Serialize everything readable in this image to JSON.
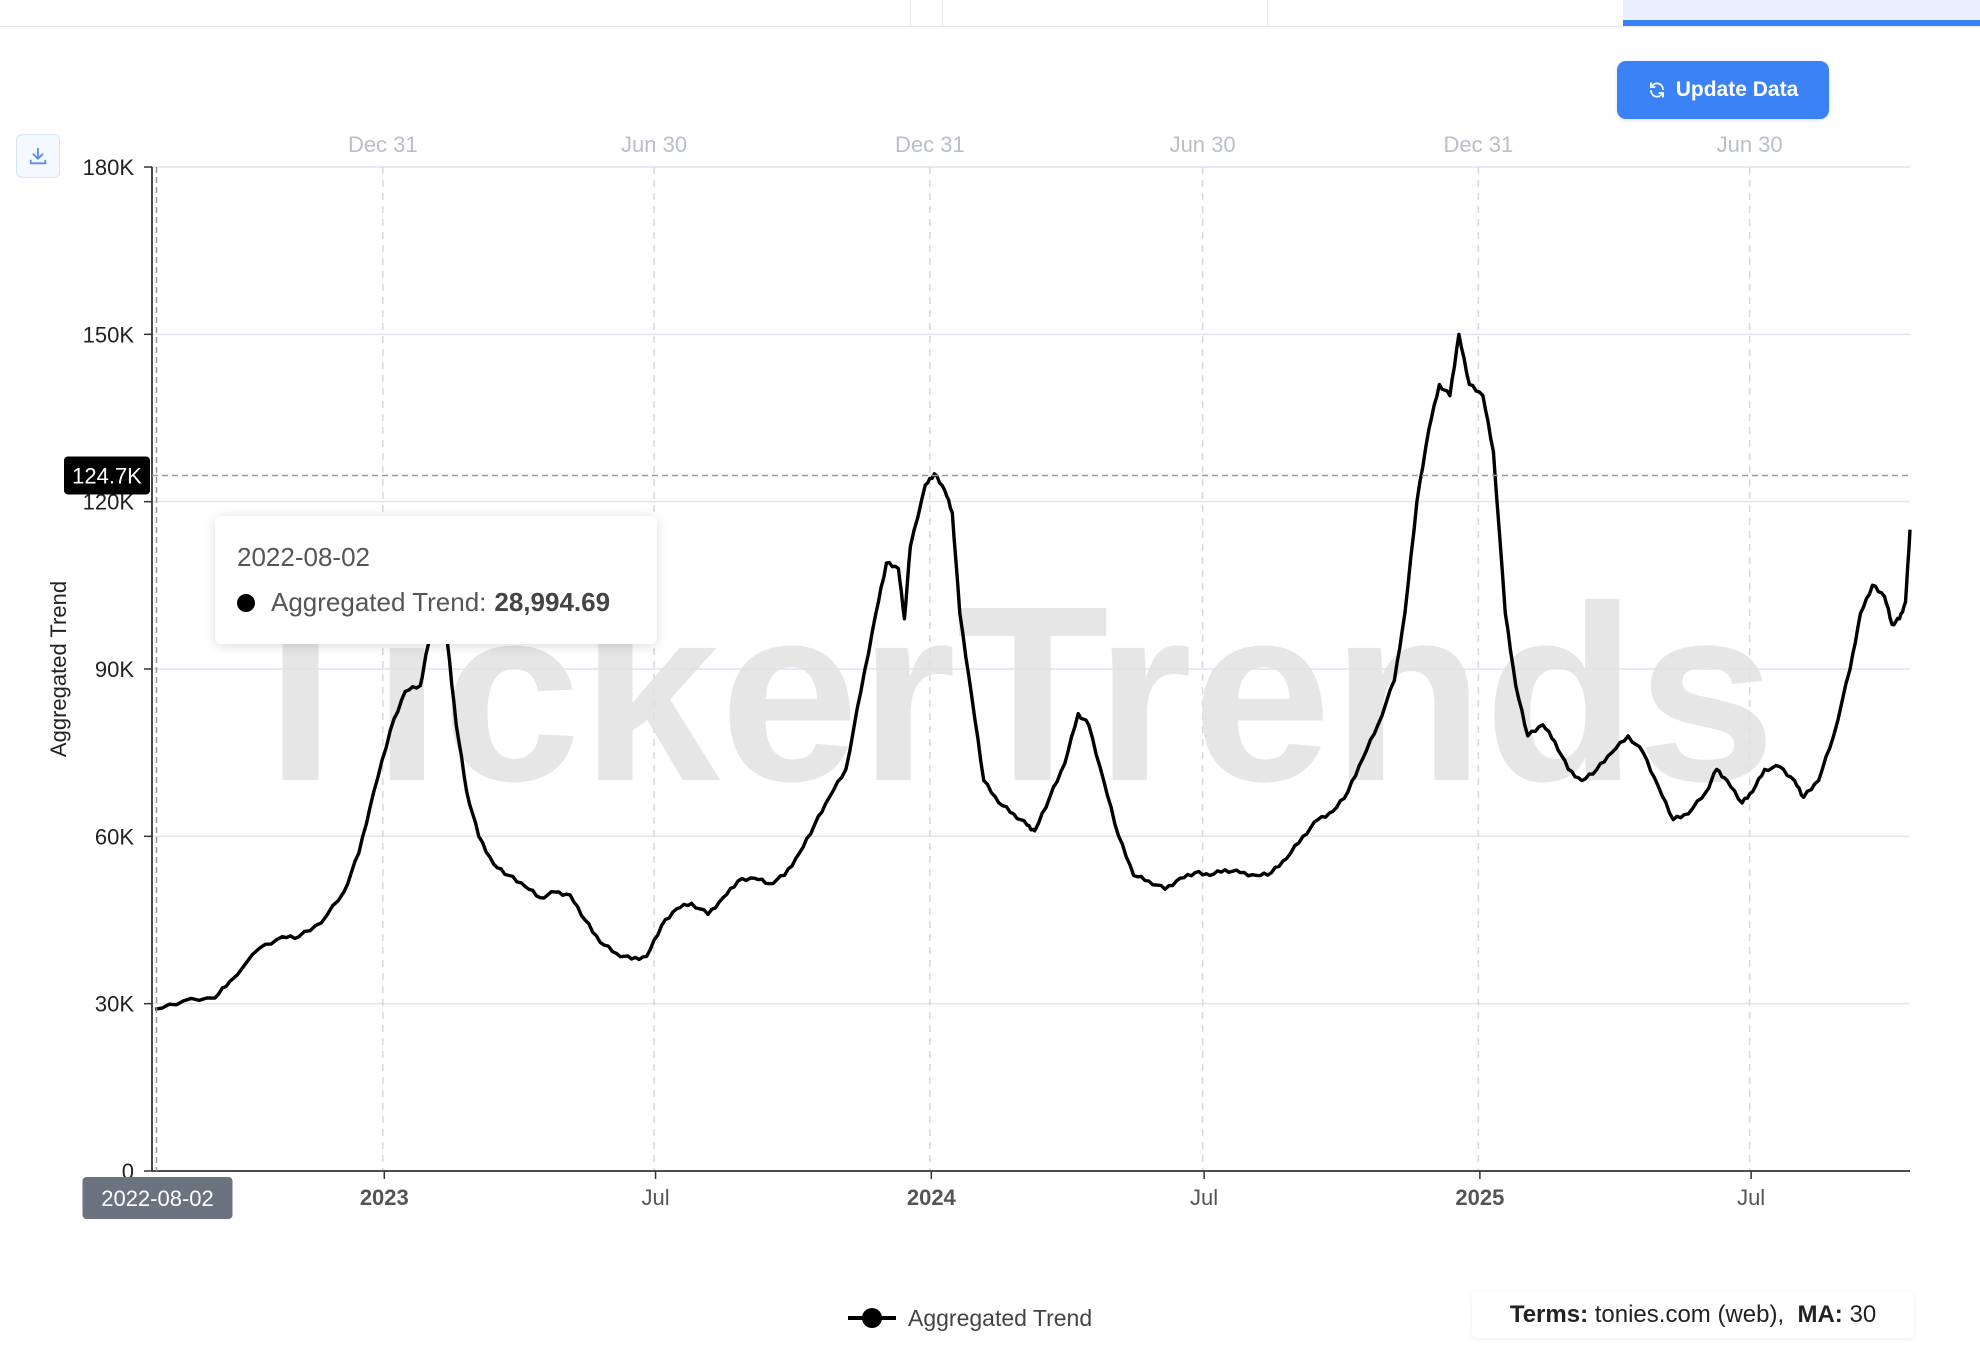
{
  "header": {
    "update_label": "Update Data",
    "update_icon": "refresh-icon",
    "download_icon": "download-icon"
  },
  "tooltip": {
    "date": "2022-08-02",
    "series_label": "Aggregated Trend:",
    "value": "28,994.69"
  },
  "crosshair": {
    "y_label": "124.7K",
    "x_label": "2022-08-02"
  },
  "watermark": "TickerTrends",
  "legend": {
    "label": "Aggregated Trend"
  },
  "terms": {
    "terms_label": "Terms:",
    "terms_value": "tonies.com (web),",
    "ma_label": "MA:",
    "ma_value": "30"
  },
  "colors": {
    "line": "#000000",
    "accent": "#3b82f6",
    "grid": "#dfe4ee",
    "watermark": "#e2e2e2"
  },
  "chart_data": {
    "type": "line",
    "ylabel": "Aggregated Trend",
    "ylim": [
      0,
      180000
    ],
    "y_ticks": [
      {
        "value": 0,
        "label": "0"
      },
      {
        "value": 30000,
        "label": "30K"
      },
      {
        "value": 60000,
        "label": "60K"
      },
      {
        "value": 90000,
        "label": "90K"
      },
      {
        "value": 120000,
        "label": "120K"
      },
      {
        "value": 150000,
        "label": "150K"
      },
      {
        "value": 180000,
        "label": "180K"
      }
    ],
    "xlim": [
      "2022-07-30",
      "2025-10-15"
    ],
    "x_ticks_bottom": [
      {
        "date": "2023-01-01",
        "label": "2023",
        "bold": true
      },
      {
        "date": "2023-07-01",
        "label": "Jul",
        "bold": false
      },
      {
        "date": "2024-01-01",
        "label": "2024",
        "bold": true
      },
      {
        "date": "2024-07-01",
        "label": "Jul",
        "bold": false
      },
      {
        "date": "2025-01-01",
        "label": "2025",
        "bold": true
      },
      {
        "date": "2025-07-01",
        "label": "Jul",
        "bold": false
      }
    ],
    "x_ticks_top": [
      {
        "date": "2022-12-31",
        "label": "Dec 31"
      },
      {
        "date": "2023-06-30",
        "label": "Jun 30"
      },
      {
        "date": "2023-12-31",
        "label": "Dec 31"
      },
      {
        "date": "2024-06-30",
        "label": "Jun 30"
      },
      {
        "date": "2024-12-31",
        "label": "Dec 31"
      },
      {
        "date": "2025-06-30",
        "label": "Jun 30"
      }
    ],
    "crosshair_date": "2022-08-02",
    "crosshair_value": 124700,
    "series": [
      {
        "name": "Aggregated Trend",
        "points": [
          [
            "2022-08-01",
            29000
          ],
          [
            "2022-08-20",
            30500
          ],
          [
            "2022-09-10",
            31000
          ],
          [
            "2022-09-20",
            34000
          ],
          [
            "2022-10-10",
            40000
          ],
          [
            "2022-10-25",
            42000
          ],
          [
            "2022-11-05",
            42000
          ],
          [
            "2022-11-20",
            44500
          ],
          [
            "2022-12-05",
            50000
          ],
          [
            "2022-12-15",
            57000
          ],
          [
            "2022-12-25",
            68000
          ],
          [
            "2023-01-05",
            79000
          ],
          [
            "2023-01-15",
            86000
          ],
          [
            "2023-01-25",
            87000
          ],
          [
            "2023-01-30",
            94000
          ],
          [
            "2023-02-05",
            100000
          ],
          [
            "2023-02-12",
            95000
          ],
          [
            "2023-02-18",
            80000
          ],
          [
            "2023-02-25",
            68000
          ],
          [
            "2023-03-05",
            60000
          ],
          [
            "2023-03-15",
            55000
          ],
          [
            "2023-03-25",
            53000
          ],
          [
            "2023-04-05",
            51000
          ],
          [
            "2023-04-15",
            49000
          ],
          [
            "2023-04-25",
            50000
          ],
          [
            "2023-05-05",
            49500
          ],
          [
            "2023-05-15",
            45000
          ],
          [
            "2023-05-25",
            41000
          ],
          [
            "2023-06-05",
            39000
          ],
          [
            "2023-06-15",
            38000
          ],
          [
            "2023-06-25",
            38500
          ],
          [
            "2023-07-05",
            44000
          ],
          [
            "2023-07-15",
            47000
          ],
          [
            "2023-07-25",
            48000
          ],
          [
            "2023-08-05",
            46000
          ],
          [
            "2023-08-15",
            49000
          ],
          [
            "2023-08-25",
            52000
          ],
          [
            "2023-09-05",
            52500
          ],
          [
            "2023-09-15",
            51500
          ],
          [
            "2023-09-25",
            53000
          ],
          [
            "2023-10-05",
            57000
          ],
          [
            "2023-10-15",
            62000
          ],
          [
            "2023-10-25",
            67000
          ],
          [
            "2023-11-05",
            72000
          ],
          [
            "2023-11-15",
            86000
          ],
          [
            "2023-11-25",
            100000
          ],
          [
            "2023-12-02",
            109000
          ],
          [
            "2023-12-10",
            108000
          ],
          [
            "2023-12-14",
            99000
          ],
          [
            "2023-12-18",
            112000
          ],
          [
            "2023-12-28",
            123000
          ],
          [
            "2024-01-03",
            125000
          ],
          [
            "2024-01-10",
            122000
          ],
          [
            "2024-01-15",
            118000
          ],
          [
            "2024-01-20",
            100000
          ],
          [
            "2024-01-28",
            85000
          ],
          [
            "2024-02-05",
            70000
          ],
          [
            "2024-02-15",
            66000
          ],
          [
            "2024-02-25",
            64000
          ],
          [
            "2024-03-05",
            62000
          ],
          [
            "2024-03-10",
            61000
          ],
          [
            "2024-03-20",
            67000
          ],
          [
            "2024-03-30",
            73000
          ],
          [
            "2024-04-08",
            82000
          ],
          [
            "2024-04-15",
            80000
          ],
          [
            "2024-04-25",
            70000
          ],
          [
            "2024-05-05",
            60000
          ],
          [
            "2024-05-15",
            53000
          ],
          [
            "2024-05-25",
            52000
          ],
          [
            "2024-06-05",
            50500
          ],
          [
            "2024-06-15",
            52500
          ],
          [
            "2024-06-25",
            53500
          ],
          [
            "2024-07-05",
            53000
          ],
          [
            "2024-07-15",
            54000
          ],
          [
            "2024-07-25",
            53500
          ],
          [
            "2024-08-05",
            53000
          ],
          [
            "2024-08-15",
            53500
          ],
          [
            "2024-08-25",
            56000
          ],
          [
            "2024-09-05",
            60000
          ],
          [
            "2024-09-15",
            63000
          ],
          [
            "2024-09-25",
            64500
          ],
          [
            "2024-10-05",
            68000
          ],
          [
            "2024-10-15",
            74000
          ],
          [
            "2024-10-25",
            80000
          ],
          [
            "2024-11-05",
            88000
          ],
          [
            "2024-11-12",
            100000
          ],
          [
            "2024-11-20",
            120000
          ],
          [
            "2024-11-28",
            133000
          ],
          [
            "2024-12-05",
            141000
          ],
          [
            "2024-12-12",
            139000
          ],
          [
            "2024-12-18",
            150000
          ],
          [
            "2024-12-25",
            141000
          ],
          [
            "2025-01-03",
            139000
          ],
          [
            "2025-01-10",
            129000
          ],
          [
            "2025-01-18",
            100000
          ],
          [
            "2025-01-25",
            87000
          ],
          [
            "2025-02-02",
            78000
          ],
          [
            "2025-02-12",
            80000
          ],
          [
            "2025-02-20",
            77000
          ],
          [
            "2025-03-01",
            72000
          ],
          [
            "2025-03-10",
            70000
          ],
          [
            "2025-03-20",
            72000
          ],
          [
            "2025-03-30",
            75000
          ],
          [
            "2025-04-10",
            78000
          ],
          [
            "2025-04-20",
            75000
          ],
          [
            "2025-04-30",
            69000
          ],
          [
            "2025-05-10",
            63000
          ],
          [
            "2025-05-20",
            64000
          ],
          [
            "2025-06-01",
            68000
          ],
          [
            "2025-06-08",
            72000
          ],
          [
            "2025-06-15",
            70000
          ],
          [
            "2025-06-25",
            66000
          ],
          [
            "2025-07-02",
            68000
          ],
          [
            "2025-07-10",
            72000
          ],
          [
            "2025-07-20",
            72500
          ],
          [
            "2025-07-30",
            70000
          ],
          [
            "2025-08-05",
            67000
          ],
          [
            "2025-08-15",
            70000
          ],
          [
            "2025-08-25",
            78000
          ],
          [
            "2025-09-05",
            90000
          ],
          [
            "2025-09-12",
            100000
          ],
          [
            "2025-09-20",
            105000
          ],
          [
            "2025-09-28",
            103000
          ],
          [
            "2025-10-03",
            98000
          ],
          [
            "2025-10-08",
            99000
          ],
          [
            "2025-10-12",
            102000
          ],
          [
            "2025-10-15",
            115000
          ]
        ]
      }
    ]
  }
}
